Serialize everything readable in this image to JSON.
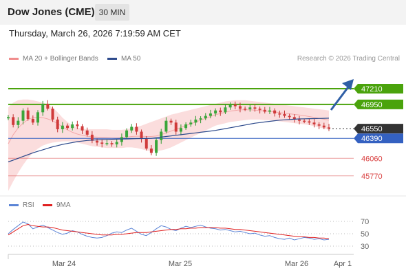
{
  "header": {
    "title": "Dow Jones (CME)",
    "interval": "30 MIN"
  },
  "timestamp": "Thursday, March 26, 2026 7:19:59 AM CET",
  "legend": {
    "bollinger": "MA 20 + Bollinger Bands",
    "ma50": "MA 50",
    "credit": "Research © 2026 Trading Central"
  },
  "rsi_legend": {
    "rsi": "RSI",
    "ma9": "9MA"
  },
  "colors": {
    "bollinger": "#f08c8c",
    "ma50": "#2d4a8c",
    "resistance": "#4aa30c",
    "support_pivot": "#3461c1",
    "support": "#d94040",
    "rsi": "#5b84d6",
    "ma9": "#e02020",
    "arrow": "#2f5fa6"
  },
  "chart_data": [
    {
      "type": "candlestick",
      "x_labels": [
        "Mar 24",
        "Mar 25",
        "Mar 26",
        "Apr 1"
      ],
      "ylim": [
        45450,
        47550
      ],
      "levels": [
        {
          "value": 47210,
          "label": "47210",
          "kind": "resistance"
        },
        {
          "value": 46950,
          "label": "46950",
          "kind": "resistance"
        },
        {
          "value": 46550,
          "label": "46550",
          "kind": "last"
        },
        {
          "value": 46390,
          "label": "46390",
          "kind": "pivot"
        },
        {
          "value": 46060,
          "label": "46060",
          "kind": "support"
        },
        {
          "value": 45770,
          "label": "45770",
          "kind": "support"
        }
      ],
      "close": [
        46740,
        46610,
        46680,
        46850,
        46710,
        46650,
        46820,
        46960,
        46880,
        46700,
        46540,
        46600,
        46560,
        46620,
        46590,
        46520,
        46450,
        46350,
        46320,
        46300,
        46310,
        46290,
        46330,
        46410,
        46520,
        46580,
        46500,
        46380,
        46220,
        46150,
        46360,
        46500,
        46680,
        46650,
        46500,
        46560,
        46620,
        46650,
        46700,
        46720,
        46760,
        46800,
        46850,
        46820,
        46900,
        46950,
        46920,
        46880,
        46870,
        46900,
        46880,
        46860,
        46830,
        46850,
        46800,
        46790,
        46760,
        46740,
        46700,
        46680,
        46670,
        46650,
        46620,
        46600,
        46570,
        46550
      ],
      "ma50": [
        46000,
        46030,
        46060,
        46090,
        46120,
        46150,
        46175,
        46200,
        46225,
        46250,
        46270,
        46290,
        46305,
        46320,
        46335,
        46345,
        46355,
        46360,
        46365,
        46370,
        46372,
        46374,
        46376,
        46378,
        46380,
        46382,
        46384,
        46386,
        46388,
        46390,
        46400,
        46410,
        46420,
        46430,
        46440,
        46450,
        46460,
        46470,
        46480,
        46490,
        46500,
        46510,
        46520,
        46535,
        46550,
        46565,
        46580,
        46595,
        46610,
        46625,
        46640,
        46650,
        46660,
        46670,
        46680,
        46690,
        46695,
        46700,
        46705,
        46710,
        46712,
        46714,
        46716,
        46718,
        46720,
        46722
      ],
      "bb_mid": [
        46300,
        46450,
        46560,
        46640,
        46700,
        46730,
        46740,
        46730,
        46710,
        46680,
        46630,
        46580,
        46530,
        46490,
        46460,
        46440,
        46425,
        46415,
        46410,
        46405,
        46400,
        46395,
        46395,
        46400,
        46410,
        46420,
        46425,
        46425,
        46420,
        46420,
        46430,
        46450,
        46480,
        46510,
        46540,
        46570,
        46600,
        46630,
        46660,
        46690,
        46720,
        46750,
        46780,
        46800,
        46820,
        46840,
        46850,
        46860,
        46860,
        46860,
        46855,
        46850,
        46840,
        46835,
        46825,
        46815,
        46805,
        46795,
        46785,
        46775,
        46765,
        46750,
        46735,
        46720,
        46705,
        46690
      ],
      "bb_upper": [
        46900,
        46980,
        47020,
        47030,
        47030,
        47020,
        47000,
        46980,
        46950,
        46900,
        46820,
        46730,
        46660,
        46600,
        46570,
        46550,
        46540,
        46540,
        46540,
        46540,
        46540,
        46530,
        46530,
        46530,
        46540,
        46560,
        46580,
        46600,
        46630,
        46660,
        46690,
        46720,
        46750,
        46780,
        46800,
        46820,
        46840,
        46860,
        46880,
        46900,
        46920,
        46940,
        46960,
        46980,
        47000,
        47010,
        47020,
        47020,
        47020,
        47010,
        47000,
        46990,
        46980,
        46970,
        46960,
        46950,
        46940,
        46930,
        46920,
        46910,
        46900,
        46890,
        46880,
        46870,
        46860,
        46850
      ],
      "bb_lower": [
        45520,
        45680,
        45820,
        45950,
        46060,
        46150,
        46220,
        46270,
        46300,
        46320,
        46330,
        46340,
        46340,
        46340,
        46320,
        46300,
        46280,
        46260,
        46250,
        46240,
        46230,
        46230,
        46230,
        46230,
        46240,
        46240,
        46230,
        46210,
        46190,
        46180,
        46180,
        46190,
        46210,
        46240,
        46280,
        46320,
        46360,
        46400,
        46440,
        46480,
        46520,
        46560,
        46600,
        46620,
        46640,
        46660,
        46670,
        46680,
        46690,
        46700,
        46700,
        46700,
        46690,
        46690,
        46680,
        46670,
        46660,
        46650,
        46640,
        46630,
        46620,
        46610,
        46590,
        46570,
        46550,
        46530
      ]
    },
    {
      "type": "line",
      "title": "RSI",
      "ylim": [
        20,
        80
      ],
      "y_ticks": [
        "70",
        "50",
        "30"
      ],
      "y_tick_values": [
        70,
        50,
        30
      ],
      "series": [
        {
          "name": "RSI",
          "values": [
            50,
            57,
            63,
            69,
            66,
            58,
            61,
            64,
            60,
            56,
            52,
            49,
            51,
            55,
            53,
            49,
            46,
            44,
            43,
            44,
            47,
            51,
            53,
            52,
            56,
            59,
            54,
            49,
            47,
            52,
            58,
            63,
            61,
            57,
            55,
            59,
            62,
            60,
            62,
            64,
            61,
            59,
            58,
            56,
            57,
            55,
            53,
            54,
            52,
            50,
            51,
            48,
            46,
            47,
            44,
            42,
            41,
            43,
            40,
            42,
            44,
            43,
            41,
            42,
            40,
            41
          ]
        },
        {
          "name": "9MA",
          "values": [
            48,
            53,
            58,
            63,
            65,
            63,
            62,
            61,
            61,
            60,
            58,
            56,
            55,
            54,
            53,
            52,
            51,
            50,
            49,
            48,
            48,
            48,
            49,
            49,
            50,
            51,
            52,
            52,
            52,
            53,
            54,
            55,
            56,
            57,
            57,
            58,
            58,
            59,
            59,
            60,
            60,
            60,
            60,
            59,
            59,
            58,
            57,
            57,
            56,
            55,
            54,
            53,
            52,
            51,
            50,
            49,
            48,
            47,
            46,
            45,
            45,
            44,
            44,
            43,
            43,
            42
          ]
        }
      ]
    }
  ]
}
